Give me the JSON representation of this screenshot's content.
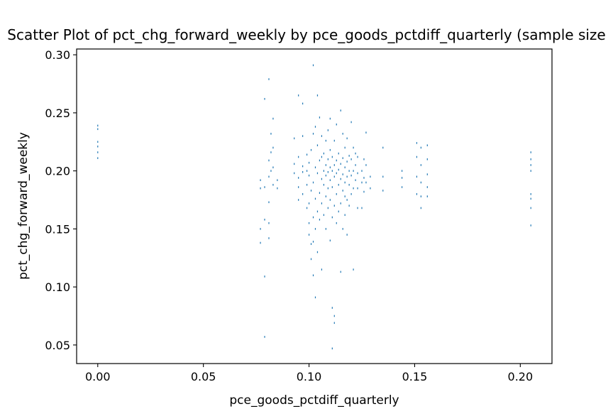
{
  "chart_data": {
    "type": "scatter",
    "title": "Scatter Plot of pct_chg_forward_weekly by pce_goods_pctdiff_quarterly (sample size",
    "xlabel": "pce_goods_pctdiff_quarterly",
    "ylabel": "pct_chg_forward_weekly",
    "xlim": [
      -0.01,
      0.215
    ],
    "ylim": [
      0.034,
      0.305
    ],
    "x_ticks": [
      0.0,
      0.05,
      0.1,
      0.15,
      0.2
    ],
    "x_tick_labels": [
      "0.00",
      "0.05",
      "0.10",
      "0.15",
      "0.20"
    ],
    "y_ticks": [
      0.05,
      0.1,
      0.15,
      0.2,
      0.25,
      0.3
    ],
    "y_tick_labels": [
      "0.05",
      "0.10",
      "0.15",
      "0.20",
      "0.25",
      "0.30"
    ],
    "grid": false,
    "marker_color": "#1f77b4",
    "series": [
      {
        "points": [
          [
            0.0,
            0.211
          ],
          [
            0.0,
            0.216
          ],
          [
            0.0,
            0.221
          ],
          [
            0.0,
            0.225
          ],
          [
            0.0,
            0.236
          ],
          [
            0.0,
            0.239
          ],
          [
            0.077,
            0.138
          ],
          [
            0.077,
            0.15
          ],
          [
            0.077,
            0.185
          ],
          [
            0.077,
            0.192
          ],
          [
            0.079,
            0.057
          ],
          [
            0.079,
            0.109
          ],
          [
            0.079,
            0.158
          ],
          [
            0.079,
            0.186
          ],
          [
            0.079,
            0.262
          ],
          [
            0.081,
            0.142
          ],
          [
            0.081,
            0.155
          ],
          [
            0.081,
            0.173
          ],
          [
            0.081,
            0.195
          ],
          [
            0.081,
            0.209
          ],
          [
            0.081,
            0.279
          ],
          [
            0.082,
            0.2
          ],
          [
            0.082,
            0.216
          ],
          [
            0.082,
            0.232
          ],
          [
            0.083,
            0.188
          ],
          [
            0.083,
            0.203
          ],
          [
            0.083,
            0.22
          ],
          [
            0.083,
            0.245
          ],
          [
            0.085,
            0.185
          ],
          [
            0.085,
            0.192
          ],
          [
            0.093,
            0.198
          ],
          [
            0.093,
            0.206
          ],
          [
            0.093,
            0.228
          ],
          [
            0.095,
            0.175
          ],
          [
            0.095,
            0.186
          ],
          [
            0.095,
            0.194
          ],
          [
            0.095,
            0.212
          ],
          [
            0.095,
            0.265
          ],
          [
            0.097,
            0.18
          ],
          [
            0.097,
            0.199
          ],
          [
            0.097,
            0.204
          ],
          [
            0.097,
            0.23
          ],
          [
            0.097,
            0.258
          ],
          [
            0.099,
            0.168
          ],
          [
            0.099,
            0.188
          ],
          [
            0.099,
            0.2
          ],
          [
            0.099,
            0.214
          ],
          [
            0.1,
            0.145
          ],
          [
            0.1,
            0.155
          ],
          [
            0.1,
            0.172
          ],
          [
            0.1,
            0.196
          ],
          [
            0.1,
            0.207
          ],
          [
            0.101,
            0.124
          ],
          [
            0.101,
            0.137
          ],
          [
            0.101,
            0.183
          ],
          [
            0.101,
            0.218
          ],
          [
            0.102,
            0.11
          ],
          [
            0.102,
            0.139
          ],
          [
            0.102,
            0.16
          ],
          [
            0.102,
            0.19
          ],
          [
            0.102,
            0.232
          ],
          [
            0.102,
            0.291
          ],
          [
            0.103,
            0.091
          ],
          [
            0.103,
            0.15
          ],
          [
            0.103,
            0.176
          ],
          [
            0.103,
            0.203
          ],
          [
            0.103,
            0.238
          ],
          [
            0.104,
            0.13
          ],
          [
            0.104,
            0.165
          ],
          [
            0.104,
            0.198
          ],
          [
            0.104,
            0.222
          ],
          [
            0.104,
            0.265
          ],
          [
            0.105,
            0.158
          ],
          [
            0.105,
            0.181
          ],
          [
            0.105,
            0.209
          ],
          [
            0.105,
            0.246
          ],
          [
            0.106,
            0.115
          ],
          [
            0.106,
            0.172
          ],
          [
            0.106,
            0.193
          ],
          [
            0.106,
            0.212
          ],
          [
            0.106,
            0.23
          ],
          [
            0.107,
            0.162
          ],
          [
            0.107,
            0.188
          ],
          [
            0.107,
            0.2
          ],
          [
            0.107,
            0.215
          ],
          [
            0.108,
            0.15
          ],
          [
            0.108,
            0.178
          ],
          [
            0.108,
            0.196
          ],
          [
            0.108,
            0.205
          ],
          [
            0.108,
            0.226
          ],
          [
            0.109,
            0.168
          ],
          [
            0.109,
            0.185
          ],
          [
            0.109,
            0.199
          ],
          [
            0.109,
            0.21
          ],
          [
            0.109,
            0.235
          ],
          [
            0.11,
            0.14
          ],
          [
            0.11,
            0.175
          ],
          [
            0.11,
            0.192
          ],
          [
            0.11,
            0.203
          ],
          [
            0.11,
            0.218
          ],
          [
            0.11,
            0.245
          ],
          [
            0.111,
            0.047
          ],
          [
            0.111,
            0.082
          ],
          [
            0.111,
            0.16
          ],
          [
            0.111,
            0.186
          ],
          [
            0.111,
            0.2
          ],
          [
            0.111,
            0.212
          ],
          [
            0.112,
            0.069
          ],
          [
            0.112,
            0.075
          ],
          [
            0.112,
            0.17
          ],
          [
            0.112,
            0.195
          ],
          [
            0.112,
            0.205
          ],
          [
            0.112,
            0.226
          ],
          [
            0.113,
            0.155
          ],
          [
            0.113,
            0.18
          ],
          [
            0.113,
            0.198
          ],
          [
            0.113,
            0.209
          ],
          [
            0.113,
            0.24
          ],
          [
            0.114,
            0.165
          ],
          [
            0.114,
            0.188
          ],
          [
            0.114,
            0.201
          ],
          [
            0.114,
            0.215
          ],
          [
            0.115,
            0.113
          ],
          [
            0.115,
            0.172
          ],
          [
            0.115,
            0.193
          ],
          [
            0.115,
            0.206
          ],
          [
            0.115,
            0.252
          ],
          [
            0.116,
            0.15
          ],
          [
            0.116,
            0.183
          ],
          [
            0.116,
            0.197
          ],
          [
            0.116,
            0.211
          ],
          [
            0.116,
            0.232
          ],
          [
            0.117,
            0.162
          ],
          [
            0.117,
            0.178
          ],
          [
            0.117,
            0.19
          ],
          [
            0.117,
            0.203
          ],
          [
            0.117,
            0.22
          ],
          [
            0.118,
            0.145
          ],
          [
            0.118,
            0.175
          ],
          [
            0.118,
            0.195
          ],
          [
            0.118,
            0.208
          ],
          [
            0.118,
            0.228
          ],
          [
            0.119,
            0.17
          ],
          [
            0.119,
            0.188
          ],
          [
            0.119,
            0.2
          ],
          [
            0.119,
            0.213
          ],
          [
            0.12,
            0.18
          ],
          [
            0.12,
            0.196
          ],
          [
            0.12,
            0.21
          ],
          [
            0.12,
            0.242
          ],
          [
            0.121,
            0.115
          ],
          [
            0.121,
            0.185
          ],
          [
            0.121,
            0.2
          ],
          [
            0.121,
            0.22
          ],
          [
            0.122,
            0.192
          ],
          [
            0.122,
            0.205
          ],
          [
            0.122,
            0.215
          ],
          [
            0.123,
            0.168
          ],
          [
            0.123,
            0.185
          ],
          [
            0.123,
            0.198
          ],
          [
            0.123,
            0.212
          ],
          [
            0.125,
            0.168
          ],
          [
            0.125,
            0.19
          ],
          [
            0.125,
            0.2
          ],
          [
            0.126,
            0.182
          ],
          [
            0.126,
            0.194
          ],
          [
            0.126,
            0.21
          ],
          [
            0.127,
            0.19
          ],
          [
            0.127,
            0.205
          ],
          [
            0.127,
            0.233
          ],
          [
            0.129,
            0.185
          ],
          [
            0.129,
            0.195
          ],
          [
            0.135,
            0.183
          ],
          [
            0.135,
            0.195
          ],
          [
            0.135,
            0.22
          ],
          [
            0.144,
            0.186
          ],
          [
            0.144,
            0.194
          ],
          [
            0.144,
            0.2
          ],
          [
            0.151,
            0.18
          ],
          [
            0.151,
            0.195
          ],
          [
            0.151,
            0.212
          ],
          [
            0.151,
            0.224
          ],
          [
            0.153,
            0.168
          ],
          [
            0.153,
            0.178
          ],
          [
            0.153,
            0.19
          ],
          [
            0.153,
            0.205
          ],
          [
            0.153,
            0.22
          ],
          [
            0.156,
            0.178
          ],
          [
            0.156,
            0.186
          ],
          [
            0.156,
            0.197
          ],
          [
            0.156,
            0.21
          ],
          [
            0.156,
            0.222
          ],
          [
            0.205,
            0.153
          ],
          [
            0.205,
            0.168
          ],
          [
            0.205,
            0.176
          ],
          [
            0.205,
            0.18
          ],
          [
            0.205,
            0.2
          ],
          [
            0.205,
            0.205
          ],
          [
            0.205,
            0.21
          ],
          [
            0.205,
            0.216
          ]
        ]
      }
    ]
  }
}
